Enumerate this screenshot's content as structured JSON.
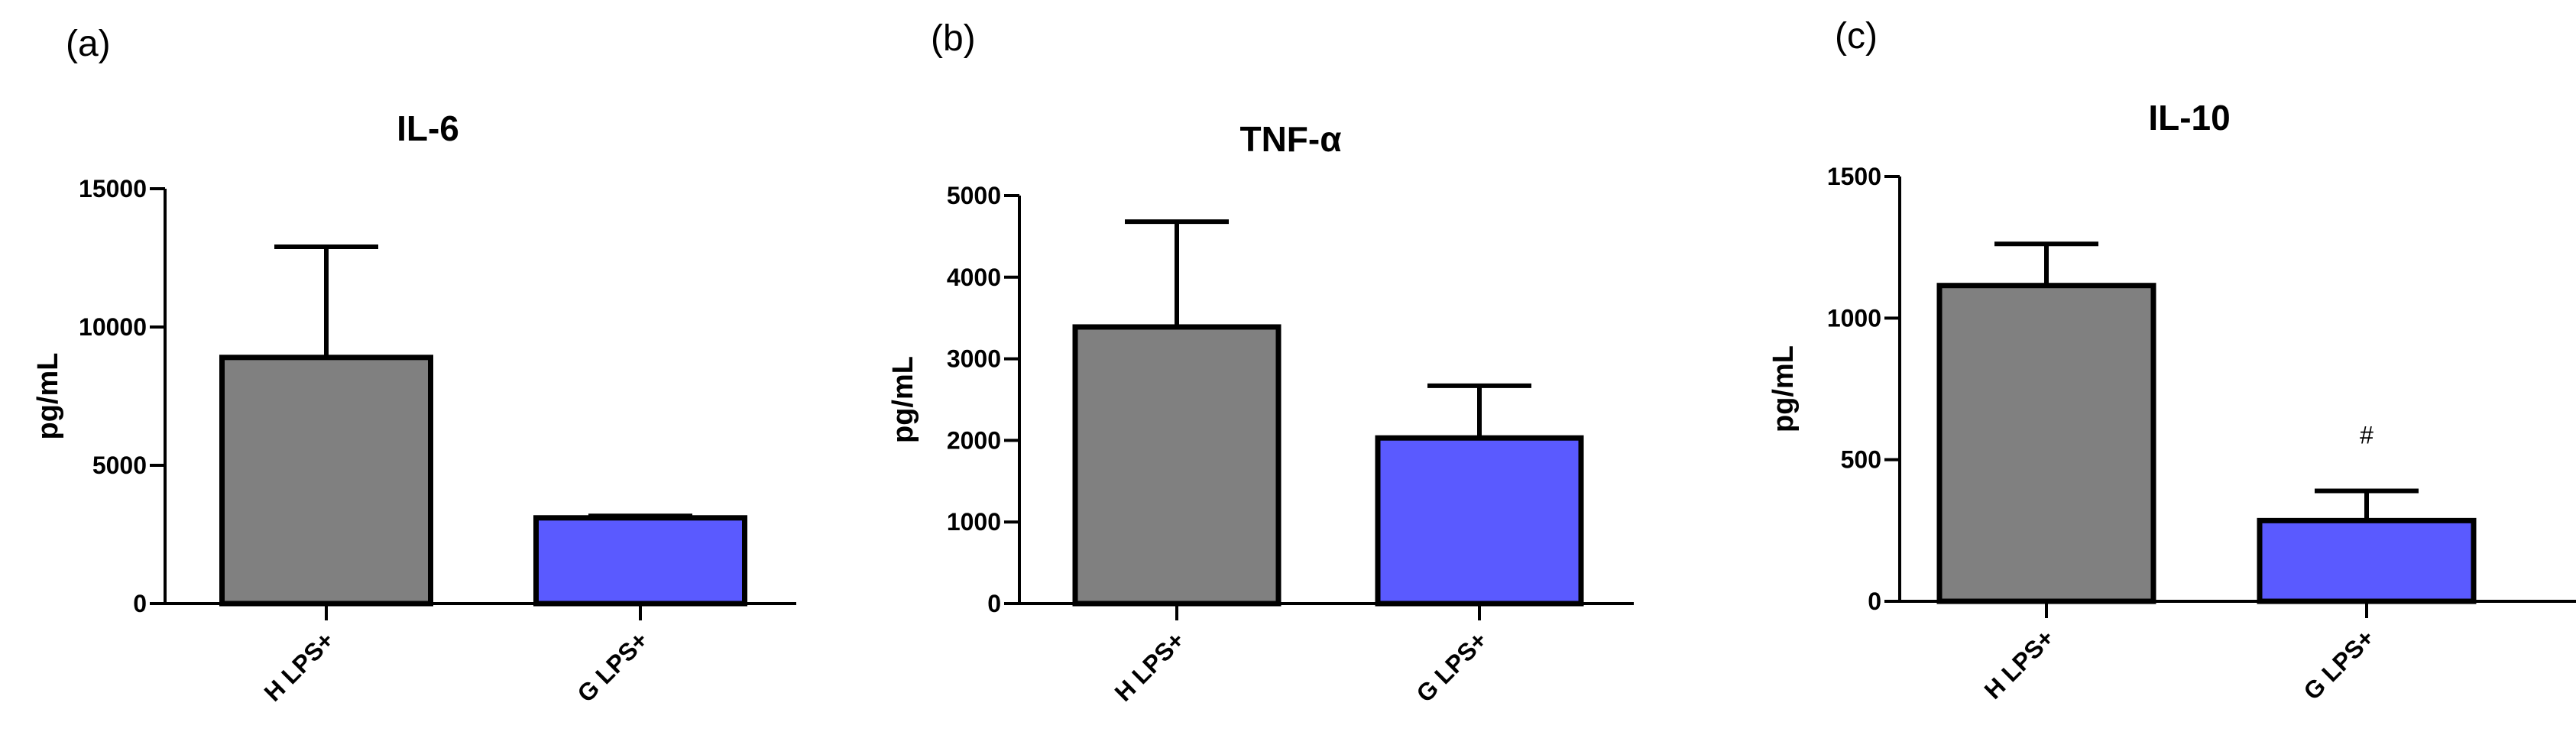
{
  "colors": {
    "H LPS+": "#808080",
    "G LPS+": "#5a5aff",
    "stroke": "#000000"
  },
  "chart_data": [
    {
      "panel_label": "(a)",
      "type": "bar",
      "title": "IL-6",
      "ylabel": "pg/mL",
      "xlabel": "",
      "categories": [
        "H LPS+",
        "G LPS+"
      ],
      "values": [
        8900,
        3100
      ],
      "error_upper": [
        12900,
        3170
      ],
      "ylim": [
        0,
        15000
      ],
      "yticks": [
        0,
        5000,
        10000,
        15000
      ],
      "ytick_labels": [
        "0",
        "5000",
        "10000",
        "15000"
      ],
      "annotations": [
        "",
        ""
      ]
    },
    {
      "panel_label": "(b)",
      "type": "bar",
      "title": "TNF-α",
      "ylabel": "pg/mL",
      "xlabel": "",
      "categories": [
        "H LPS+",
        "G LPS+"
      ],
      "values": [
        3390,
        2030
      ],
      "error_upper": [
        4680,
        2670
      ],
      "ylim": [
        0,
        5000
      ],
      "yticks": [
        0,
        1000,
        2000,
        3000,
        4000,
        5000
      ],
      "ytick_labels": [
        "0",
        "1000",
        "2000",
        "3000",
        "4000",
        "5000"
      ],
      "annotations": [
        "",
        ""
      ]
    },
    {
      "panel_label": "(c)",
      "type": "bar",
      "title": "IL-10",
      "ylabel": "pg/mL",
      "xlabel": "",
      "categories": [
        "H LPS+",
        "G LPS+"
      ],
      "values": [
        1115,
        285
      ],
      "error_upper": [
        1262,
        390
      ],
      "ylim": [
        0,
        1500
      ],
      "yticks": [
        0,
        500,
        1000,
        1500
      ],
      "ytick_labels": [
        "0",
        "500",
        "1000",
        "1500"
      ],
      "annotations": [
        "",
        "#"
      ]
    }
  ]
}
